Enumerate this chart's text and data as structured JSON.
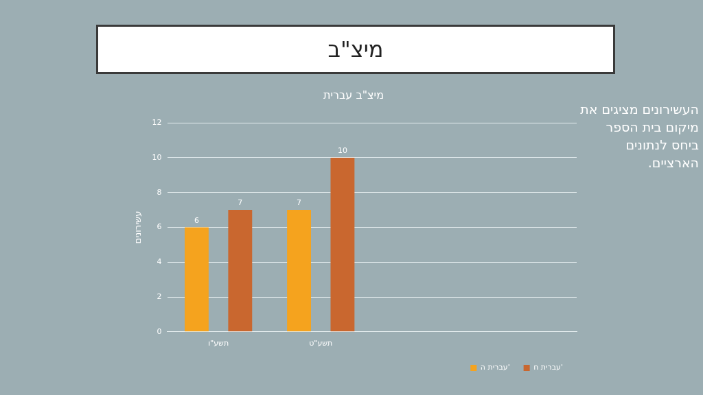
{
  "chart_data": {
    "type": "bar",
    "title": "מיצ\"ב",
    "subtitle": "מיצ\"ב עברית",
    "ylabel": "עשירונים",
    "categories": [
      "תשע\"ו",
      "תשע\"ט",
      null,
      null
    ],
    "series": [
      {
        "name": "עברית ה'",
        "color": "#f5a31e",
        "values": [
          6,
          7,
          null,
          null
        ]
      },
      {
        "name": "עברית ח'",
        "color": "#c9672f",
        "values": [
          7,
          10,
          null,
          null
        ]
      }
    ],
    "ylim": [
      0,
      12
    ],
    "yticks": [
      0,
      2,
      4,
      6,
      8,
      10,
      12
    ],
    "grid": "y",
    "legend": "bottom right",
    "data_labels": true,
    "annotations": [
      "העשירונים מציגים את מיקום בית הספר ביחס לנתונים הארציים."
    ]
  }
}
